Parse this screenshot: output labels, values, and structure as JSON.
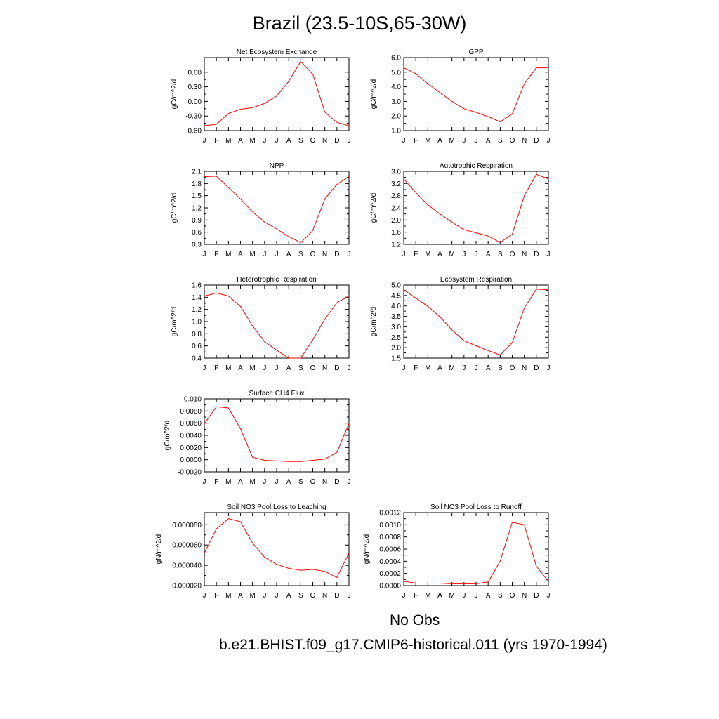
{
  "title": "Brazil (23.5-10S,65-30W)",
  "legend": {
    "obs_label": "No Obs",
    "obs_color": "#8c8cff",
    "model_label": "b.e21.BHIST.f09_g17.CMIP6-historical.011 (yrs 1970-1994)",
    "model_color": "#ff6464"
  },
  "chart_data": [
    {
      "type": "line",
      "title": "Net Ecosystem Exchange",
      "ylabel": "gC/m^2/d",
      "categories": [
        "J",
        "F",
        "M",
        "A",
        "M",
        "J",
        "J",
        "A",
        "S",
        "O",
        "N",
        "D",
        "J"
      ],
      "ylim": [
        -0.6,
        0.9
      ],
      "yticks": [
        "-0.60",
        "-0.30",
        "0.00",
        "0.30",
        "0.60"
      ],
      "yticks_values": [
        -0.6,
        -0.3,
        0,
        0.3,
        0.6
      ],
      "series": [
        {
          "color": "#ff0000",
          "values": [
            -0.5,
            -0.47,
            -0.25,
            -0.16,
            -0.13,
            -0.04,
            0.11,
            0.41,
            0.82,
            0.56,
            -0.22,
            -0.43,
            -0.5
          ]
        }
      ]
    },
    {
      "type": "line",
      "title": "GPP",
      "ylabel": "gC/m^2/d",
      "categories": [
        "J",
        "F",
        "M",
        "A",
        "M",
        "J",
        "J",
        "A",
        "S",
        "O",
        "N",
        "D",
        "J"
      ],
      "ylim": [
        1.0,
        6.0
      ],
      "yticks": [
        "1.0",
        "2.0",
        "3.0",
        "4.0",
        "5.0",
        "6.0"
      ],
      "yticks_values": [
        1,
        2,
        3,
        4,
        5,
        6
      ],
      "series": [
        {
          "color": "#ff0000",
          "values": [
            5.3,
            4.9,
            4.2,
            3.6,
            3.0,
            2.5,
            2.25,
            1.95,
            1.6,
            2.15,
            4.2,
            5.3,
            5.3
          ]
        }
      ]
    },
    {
      "type": "line",
      "title": "NPP",
      "ylabel": "gC/m^2/d",
      "categories": [
        "J",
        "F",
        "M",
        "A",
        "M",
        "J",
        "J",
        "A",
        "S",
        "O",
        "N",
        "D",
        "J"
      ],
      "ylim": [
        0.3,
        2.1
      ],
      "yticks": [
        "0.3",
        "0.6",
        "0.9",
        "1.2",
        "1.5",
        "1.8",
        "2.1"
      ],
      "yticks_values": [
        0.3,
        0.6,
        0.9,
        1.2,
        1.5,
        1.8,
        2.1
      ],
      "series": [
        {
          "color": "#ff0000",
          "values": [
            1.97,
            1.98,
            1.7,
            1.42,
            1.1,
            0.85,
            0.68,
            0.49,
            0.34,
            0.64,
            1.42,
            1.78,
            1.97
          ]
        }
      ]
    },
    {
      "type": "line",
      "title": "Autotrophic Respiration",
      "ylabel": "gC/m^2/d",
      "categories": [
        "J",
        "F",
        "M",
        "A",
        "M",
        "J",
        "J",
        "A",
        "S",
        "O",
        "N",
        "D",
        "J"
      ],
      "ylim": [
        1.2,
        3.6
      ],
      "yticks": [
        "1.2",
        "1.6",
        "2.0",
        "2.4",
        "2.8",
        "3.2",
        "3.6"
      ],
      "yticks_values": [
        1.2,
        1.6,
        2.0,
        2.4,
        2.8,
        3.2,
        3.6
      ],
      "series": [
        {
          "color": "#ff0000",
          "values": [
            3.35,
            2.9,
            2.5,
            2.2,
            1.93,
            1.68,
            1.58,
            1.47,
            1.26,
            1.53,
            2.8,
            3.5,
            3.35
          ]
        }
      ]
    },
    {
      "type": "line",
      "title": "Heterotrophic Respiration",
      "ylabel": "gC/m^2/d",
      "categories": [
        "J",
        "F",
        "M",
        "A",
        "M",
        "J",
        "J",
        "A",
        "S",
        "O",
        "N",
        "D",
        "J"
      ],
      "ylim": [
        0.4,
        1.6
      ],
      "yticks": [
        "0.4",
        "0.6",
        "0.8",
        "1.0",
        "1.2",
        "1.4",
        "1.6"
      ],
      "yticks_values": [
        0.4,
        0.6,
        0.8,
        1.0,
        1.2,
        1.4,
        1.6
      ],
      "series": [
        {
          "color": "#ff0000",
          "values": [
            1.42,
            1.47,
            1.42,
            1.25,
            0.93,
            0.67,
            0.53,
            0.4,
            0.4,
            0.7,
            1.04,
            1.31,
            1.42
          ]
        }
      ]
    },
    {
      "type": "line",
      "title": "Ecosystem Respiration",
      "ylabel": "gC/m^2/d",
      "categories": [
        "J",
        "F",
        "M",
        "A",
        "M",
        "J",
        "J",
        "A",
        "S",
        "O",
        "N",
        "D",
        "J"
      ],
      "ylim": [
        1.5,
        5.0
      ],
      "yticks": [
        "1.5",
        "2.0",
        "2.5",
        "3.0",
        "3.5",
        "4.0",
        "4.5",
        "5.0"
      ],
      "yticks_values": [
        1.5,
        2.0,
        2.5,
        3.0,
        3.5,
        4.0,
        4.5,
        5.0
      ],
      "series": [
        {
          "color": "#ff0000",
          "values": [
            4.77,
            4.38,
            3.98,
            3.48,
            2.85,
            2.33,
            2.09,
            1.86,
            1.65,
            2.24,
            3.9,
            4.8,
            4.77
          ]
        }
      ]
    },
    {
      "type": "line",
      "title": "Surface CH4 Flux",
      "ylabel": "gC/m^2/d",
      "categories": [
        "J",
        "F",
        "M",
        "A",
        "M",
        "J",
        "J",
        "A",
        "S",
        "O",
        "N",
        "D",
        "J"
      ],
      "ylim": [
        -0.002,
        0.01
      ],
      "yticks": [
        "-0.0020",
        "0.0000",
        "0.0020",
        "0.0040",
        "0.0060",
        "0.0080",
        "0.010"
      ],
      "yticks_values": [
        -0.002,
        0,
        0.002,
        0.004,
        0.006,
        0.008,
        0.01
      ],
      "series": [
        {
          "color": "#ff0000",
          "values": [
            0.0059,
            0.0087,
            0.0085,
            0.0051,
            0.0004,
            -0.0001,
            -0.0002,
            -0.0003,
            -0.0003,
            -0.0001,
            0.0001,
            0.0012,
            0.0059
          ]
        }
      ]
    },
    {
      "type": "line",
      "title": "Soil NO3 Pool Loss to Leaching",
      "ylabel": "gN/m^2/d",
      "categories": [
        "J",
        "F",
        "M",
        "A",
        "M",
        "J",
        "J",
        "A",
        "S",
        "O",
        "N",
        "D",
        "J"
      ],
      "ylim": [
        2e-05,
        9.2e-05
      ],
      "yticks": [
        "0.000020",
        "0.000040",
        "0.000060",
        "0.000080"
      ],
      "yticks_values": [
        2e-05,
        4e-05,
        6e-05,
        8e-05
      ],
      "series": [
        {
          "color": "#ff0000",
          "values": [
            5.2e-05,
            7.6e-05,
            8.6e-05,
            8.3e-05,
            6.2e-05,
            4.8e-05,
            4.1e-05,
            3.7e-05,
            3.5e-05,
            3.6e-05,
            3.4e-05,
            2.8e-05,
            5.2e-05
          ]
        }
      ]
    },
    {
      "type": "line",
      "title": "Soil NO3 Pool Loss to Runoff",
      "ylabel": "gN/m^2/d",
      "categories": [
        "J",
        "F",
        "M",
        "A",
        "M",
        "J",
        "J",
        "A",
        "S",
        "O",
        "N",
        "D",
        "J"
      ],
      "ylim": [
        0.0,
        0.0012
      ],
      "yticks": [
        "0.0000",
        "0.0002",
        "0.0004",
        "0.0006",
        "0.0008",
        "0.0010",
        "0.0012"
      ],
      "yticks_values": [
        0,
        0.0002,
        0.0004,
        0.0006,
        0.0008,
        0.001,
        0.0012
      ],
      "series": [
        {
          "color": "#ff0000",
          "values": [
            7e-05,
            4e-05,
            4e-05,
            4e-05,
            3e-05,
            3e-05,
            3e-05,
            6e-05,
            0.0004,
            0.00104,
            0.001,
            0.00032,
            7e-05
          ]
        }
      ]
    }
  ]
}
